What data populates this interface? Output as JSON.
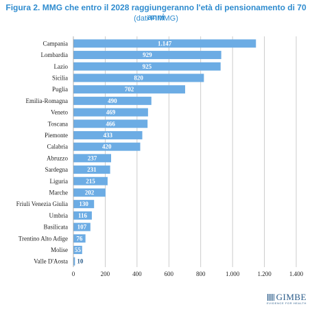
{
  "title": "Figura 2. MMG che entro il 2028 raggiungeranno l'età di pensionamento di 70 anni",
  "subtitle": "(dati FIMMG)",
  "logo": {
    "name": "GIMBE",
    "tagline": "EVIDENCE FOR HEALTH"
  },
  "colors": {
    "bar": "#6cace4",
    "grid": "#bfbfbf",
    "title": "#2f8ccf"
  },
  "chart_data": {
    "type": "bar",
    "orientation": "horizontal",
    "title": "Figura 2. MMG che entro il 2028 raggiungeranno l'età di pensionamento di 70 anni",
    "subtitle": "(dati FIMMG)",
    "categories": [
      "Campania",
      "Lombardia",
      "Lazio",
      "Sicilia",
      "Puglia",
      "Emilia-Romagna",
      "Veneto",
      "Toscana",
      "Piemonte",
      "Calabria",
      "Abruzzo",
      "Sardegna",
      "Liguria",
      "Marche",
      "Friuli Venezia Giulia",
      "Umbria",
      "Basilicata",
      "Trentino Alto Adige",
      "Molise",
      "Valle D'Aosta"
    ],
    "values": [
      1147,
      929,
      925,
      820,
      702,
      490,
      469,
      466,
      433,
      420,
      237,
      231,
      215,
      202,
      130,
      116,
      107,
      76,
      55,
      10
    ],
    "value_labels": [
      "1.147",
      "929",
      "925",
      "820",
      "702",
      "490",
      "469",
      "466",
      "433",
      "420",
      "237",
      "231",
      "215",
      "202",
      "130",
      "116",
      "107",
      "76",
      "55",
      "10"
    ],
    "xlim": [
      0,
      1400
    ],
    "xticks": [
      0,
      200,
      400,
      600,
      800,
      1000,
      1200,
      1400
    ],
    "xtick_labels": [
      "0",
      "200",
      "400",
      "600",
      "800",
      "1.000",
      "1.200",
      "1.400"
    ],
    "xlabel": "",
    "ylabel": "",
    "grid": "vertical",
    "legend": "none"
  }
}
